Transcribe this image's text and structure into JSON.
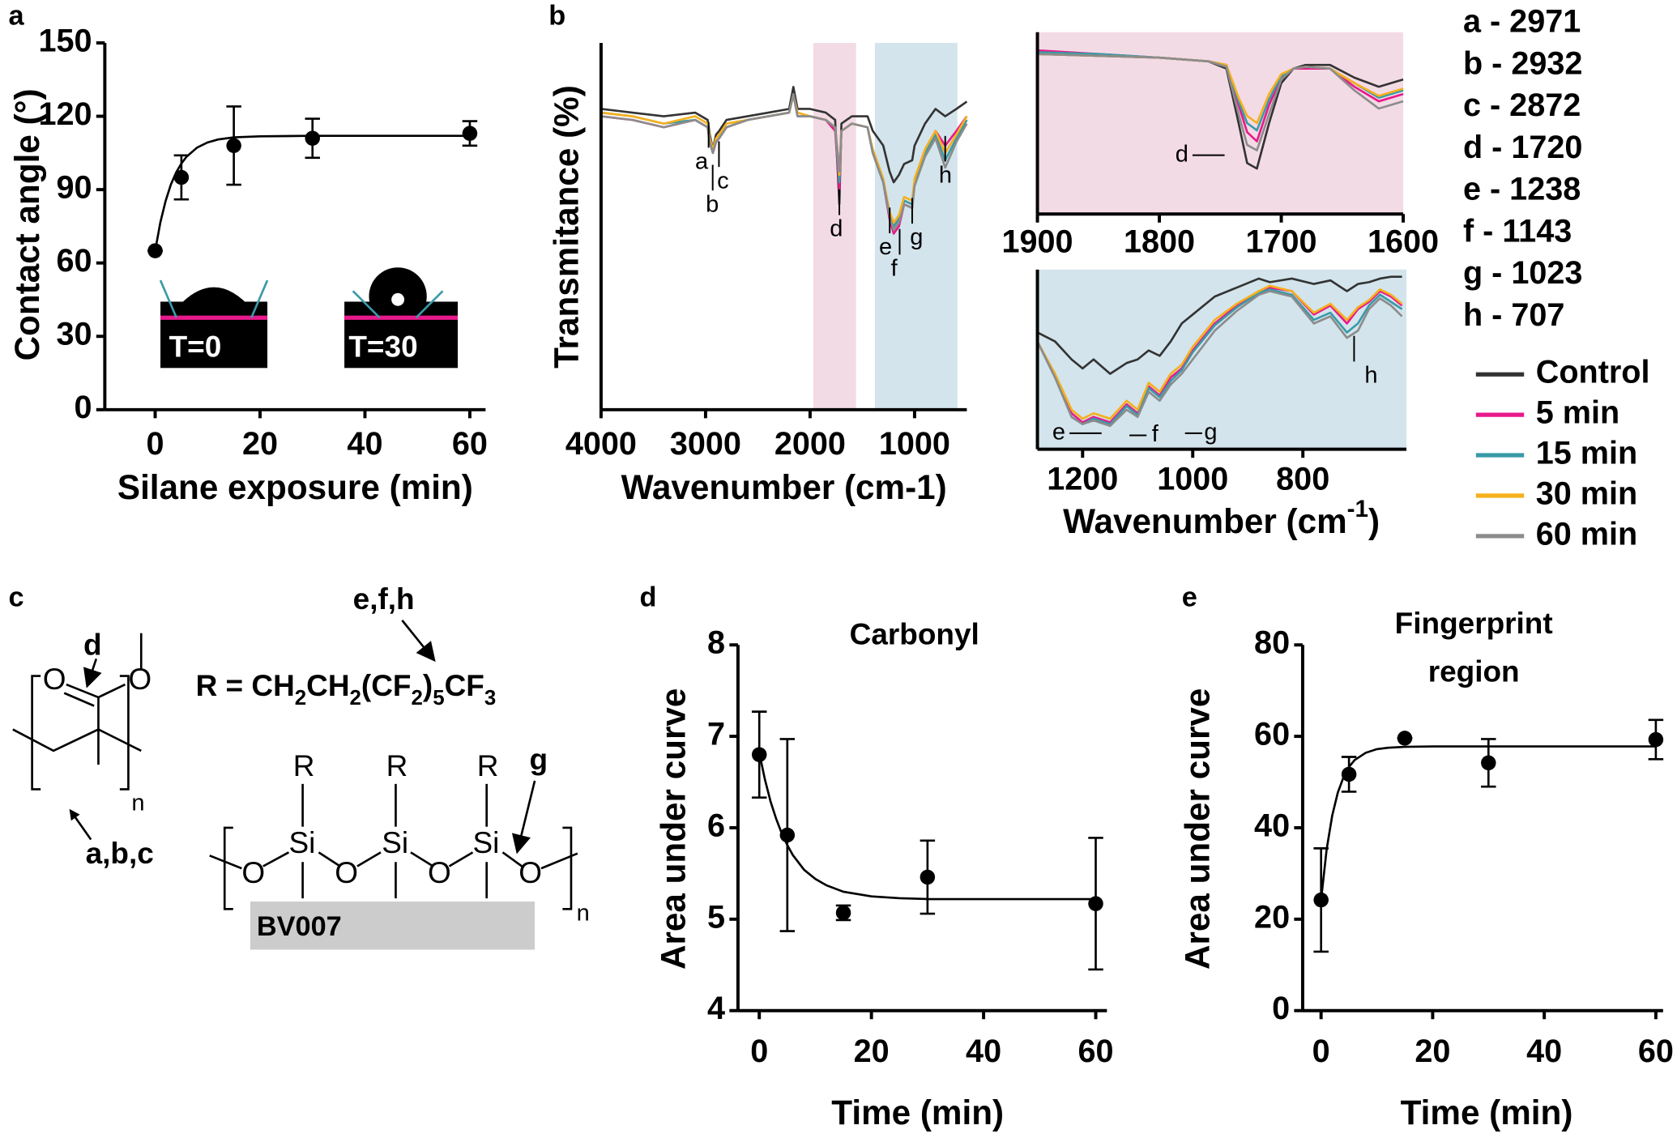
{
  "panel_labels": [
    "a",
    "b",
    "c",
    "d",
    "e"
  ],
  "chart_data": [
    {
      "type": "scatter",
      "x_label": "Silane exposure (min)",
      "y_label": "Contact angle (°)",
      "color": "#000000",
      "xlim": [
        -9.6,
        63
      ],
      "ylim": [
        0,
        150
      ],
      "xticks": [
        0,
        20,
        40,
        60
      ],
      "yticks": [
        0,
        30,
        60,
        90,
        120,
        150
      ],
      "x": [
        0,
        5,
        15,
        30,
        60
      ],
      "values": [
        65,
        95,
        108,
        111,
        113
      ],
      "errors": [
        0,
        9,
        16,
        8,
        5
      ],
      "fit": {
        "x": [
          0,
          1,
          2,
          3,
          4,
          5,
          6,
          8,
          10,
          12,
          15,
          20,
          25,
          30,
          40,
          50,
          60
        ],
        "values": [
          65,
          76.7,
          85.4,
          92.1,
          97.0,
          100.7,
          103.5,
          107.2,
          109.3,
          110.5,
          111.4,
          111.8,
          111.9,
          112,
          112,
          112,
          112
        ]
      },
      "insets": [
        "T=0",
        "T=30"
      ]
    },
    {
      "type": "line",
      "x_label": "Wavenumber (cm-1)",
      "y_label": "Transmitance (%)",
      "xlim": [
        4000,
        500
      ],
      "ylim": [
        0,
        100
      ],
      "xticks": [
        4000,
        3000,
        2000,
        1000
      ],
      "regions": [
        {
          "from": 1970,
          "to": 1560,
          "color": "#f3dbe5"
        },
        {
          "from": 1380,
          "to": 590,
          "color": "#d3e4ec"
        }
      ],
      "x": [
        4000,
        3700,
        3400,
        3100,
        2980,
        2960,
        2930,
        2900,
        2870,
        2800,
        2600,
        2400,
        2200,
        2160,
        2120,
        2000,
        1850,
        1760,
        1730,
        1720,
        1700,
        1600,
        1450,
        1400,
        1300,
        1240,
        1200,
        1150,
        1100,
        1023,
        1000,
        900,
        800,
        707,
        600,
        500
      ],
      "series": [
        {
          "name": "Control",
          "color": "#333333",
          "values": [
            82,
            81,
            80,
            81,
            79,
            75,
            71,
            75,
            76,
            79,
            80,
            81,
            82,
            88,
            82,
            82,
            81,
            79,
            62,
            56,
            78,
            80,
            80,
            76,
            72,
            65,
            62,
            64,
            67,
            68,
            72,
            78,
            82,
            80,
            82,
            84
          ]
        },
        {
          "name": "5 min",
          "color": "#e8198b",
          "values": [
            80,
            79,
            77,
            79,
            77,
            73,
            70,
            73,
            74,
            77,
            79,
            80,
            81,
            86,
            80,
            80,
            79,
            76,
            64,
            60,
            76,
            78,
            77,
            70,
            62,
            52,
            48,
            50,
            56,
            55,
            62,
            70,
            76,
            72,
            76,
            80
          ]
        },
        {
          "name": "15 min",
          "color": "#3a9aa8",
          "values": [
            81,
            80,
            78,
            79,
            77,
            73,
            70,
            73,
            74,
            77,
            79,
            80,
            81,
            86,
            80,
            80,
            79,
            77,
            66,
            62,
            76,
            78,
            77,
            70,
            62,
            53,
            50,
            52,
            57,
            56,
            62,
            70,
            75,
            68,
            74,
            79
          ]
        },
        {
          "name": "30 min",
          "color": "#f5b01c",
          "values": [
            81,
            80,
            78,
            80,
            78,
            74,
            71,
            74,
            75,
            78,
            79,
            80,
            81,
            86,
            81,
            80,
            79,
            77,
            68,
            64,
            76,
            78,
            77,
            71,
            63,
            54,
            51,
            53,
            58,
            57,
            63,
            71,
            76,
            70,
            75,
            80
          ]
        },
        {
          "name": "60 min",
          "color": "#8c8c8c",
          "values": [
            80,
            79,
            77,
            79,
            77,
            73,
            70,
            73,
            74,
            77,
            79,
            80,
            81,
            86,
            80,
            80,
            79,
            77,
            68,
            65,
            76,
            78,
            77,
            70,
            62,
            53,
            49,
            51,
            56,
            55,
            61,
            69,
            74,
            66,
            73,
            78
          ]
        }
      ],
      "annotations": [
        {
          "text": "a",
          "x": 2971
        },
        {
          "text": "b",
          "x": 2932
        },
        {
          "text": "c",
          "x": 2872
        },
        {
          "text": "d",
          "x": 1720
        },
        {
          "text": "e",
          "x": 1238
        },
        {
          "text": "f",
          "x": 1143
        },
        {
          "text": "g",
          "x": 1023
        },
        {
          "text": "h",
          "x": 707
        }
      ]
    },
    {
      "type": "line",
      "background": "#f3dbe5",
      "xlim": [
        1900,
        1600
      ],
      "ylim": [
        0,
        100
      ],
      "xticks": [
        1900,
        1800,
        1700,
        1600
      ],
      "x": [
        1900,
        1850,
        1800,
        1760,
        1745,
        1735,
        1728,
        1720,
        1710,
        1700,
        1690,
        1680,
        1660,
        1640,
        1620,
        1600
      ],
      "series": [
        {
          "color": "#333333",
          "values": [
            88,
            87,
            86,
            84,
            80,
            50,
            28,
            25,
            50,
            72,
            80,
            82,
            82,
            75,
            70,
            74
          ]
        },
        {
          "color": "#e8198b",
          "values": [
            90,
            88,
            86,
            84,
            82,
            60,
            45,
            40,
            60,
            75,
            80,
            80,
            80,
            70,
            62,
            66
          ]
        },
        {
          "color": "#3a9aa8",
          "values": [
            89,
            88,
            86,
            84,
            82,
            62,
            50,
            46,
            63,
            76,
            80,
            81,
            80,
            72,
            64,
            68
          ]
        },
        {
          "color": "#f5b01c",
          "values": [
            88,
            87,
            86,
            84,
            82,
            64,
            54,
            50,
            66,
            77,
            80,
            81,
            80,
            72,
            65,
            69
          ]
        },
        {
          "color": "#8c8c8c",
          "values": [
            88,
            87,
            86,
            84,
            81,
            55,
            38,
            35,
            55,
            74,
            80,
            81,
            80,
            68,
            58,
            62
          ]
        }
      ],
      "annotations": [
        {
          "text": "d",
          "x": 1720
        }
      ]
    },
    {
      "type": "line",
      "background": "#d3e4ec",
      "x_label": [
        "Wavenumber (cm",
        "-1",
        ")"
      ],
      "xlim": [
        1282,
        612
      ],
      "ylim": [
        0,
        100
      ],
      "xticks": [
        1200,
        1000,
        800
      ],
      "x": [
        1282,
        1250,
        1220,
        1200,
        1180,
        1150,
        1120,
        1100,
        1080,
        1060,
        1040,
        1020,
        1000,
        960,
        920,
        880,
        860,
        820,
        780,
        750,
        720,
        700,
        680,
        660,
        640,
        620
      ],
      "series": [
        {
          "color": "#333333",
          "values": [
            65,
            60,
            50,
            45,
            50,
            42,
            48,
            50,
            55,
            52,
            60,
            70,
            75,
            85,
            90,
            95,
            93,
            95,
            92,
            94,
            88,
            92,
            93,
            95,
            96,
            96
          ]
        },
        {
          "color": "#e8198b",
          "values": [
            60,
            40,
            20,
            15,
            18,
            15,
            25,
            20,
            35,
            30,
            40,
            45,
            55,
            70,
            80,
            88,
            90,
            88,
            75,
            80,
            70,
            78,
            82,
            88,
            85,
            80
          ]
        },
        {
          "color": "#3a9aa8",
          "values": [
            60,
            40,
            18,
            14,
            17,
            14,
            24,
            19,
            34,
            29,
            38,
            44,
            54,
            69,
            79,
            87,
            89,
            86,
            72,
            76,
            65,
            70,
            80,
            86,
            82,
            78
          ]
        },
        {
          "color": "#f5b01c",
          "values": [
            60,
            42,
            22,
            17,
            20,
            17,
            27,
            22,
            37,
            32,
            42,
            47,
            57,
            72,
            81,
            88,
            91,
            88,
            76,
            81,
            72,
            79,
            83,
            89,
            86,
            81
          ]
        },
        {
          "color": "#8c8c8c",
          "values": [
            60,
            40,
            18,
            14,
            16,
            13,
            22,
            18,
            32,
            27,
            36,
            42,
            50,
            66,
            77,
            86,
            88,
            85,
            70,
            74,
            62,
            66,
            78,
            84,
            80,
            74
          ]
        }
      ],
      "annotations": [
        {
          "text": "e",
          "x": 1238
        },
        {
          "text": "f",
          "x": 1143
        },
        {
          "text": "g",
          "x": 1023
        },
        {
          "text": "h",
          "x": 707
        }
      ]
    },
    {
      "type": "scatter",
      "title": [
        "Carbonyl"
      ],
      "x_label": "Time (min)",
      "y_label": "Area under curve",
      "color": "#000000",
      "xlim": [
        -3.8,
        62
      ],
      "ylim": [
        4,
        8
      ],
      "xticks": [
        0,
        20,
        40,
        60
      ],
      "yticks": [
        4,
        5,
        6,
        7,
        8
      ],
      "x": [
        0,
        5,
        15,
        30,
        60
      ],
      "values": [
        6.8,
        5.92,
        5.07,
        5.46,
        5.17
      ],
      "errors": [
        0.47,
        1.05,
        0.08,
        0.4,
        0.72
      ],
      "fit": {
        "x": [
          0,
          1,
          2,
          3,
          4,
          5,
          6,
          8,
          10,
          12,
          15,
          20,
          25,
          30,
          40,
          50,
          60
        ],
        "values": [
          6.82,
          6.53,
          6.29,
          6.1,
          5.94,
          5.81,
          5.7,
          5.54,
          5.44,
          5.37,
          5.3,
          5.25,
          5.23,
          5.22,
          5.22,
          5.22,
          5.22
        ]
      }
    },
    {
      "type": "scatter",
      "title": [
        "Fingerprint",
        "region"
      ],
      "x_label": "Time (min)",
      "y_label": "Area under curve",
      "color": "#000000",
      "xlim": [
        -3.3,
        61.3
      ],
      "ylim": [
        0,
        80
      ],
      "xticks": [
        0,
        20,
        40,
        60
      ],
      "yticks": [
        0,
        20,
        40,
        60,
        80
      ],
      "x": [
        0,
        5,
        15,
        30,
        60
      ],
      "values": [
        24.2,
        51.7,
        59.6,
        54.2,
        59.3
      ],
      "errors": [
        11.3,
        3.8,
        0,
        5.2,
        4.3
      ],
      "fit": {
        "x": [
          0,
          1,
          2,
          3,
          4,
          5,
          6,
          8,
          10,
          12,
          15,
          20,
          25,
          30,
          40,
          50,
          60
        ],
        "values": [
          24.2,
          35.3,
          42.7,
          47.7,
          51.0,
          53.3,
          54.8,
          56.4,
          57.2,
          57.5,
          57.7,
          57.8,
          57.8,
          57.8,
          57.8,
          57.8,
          57.8
        ]
      }
    }
  ],
  "peak_list": [
    "a - 2971",
    "b - 2932",
    "c - 2872",
    "d - 1720",
    "e - 1238",
    "f - 1143",
    "g - 1023",
    "h - 707"
  ],
  "diagram": {
    "d": "d",
    "efh": "e,f,h",
    "formula": [
      "R = CH",
      "2",
      "CH",
      "2",
      "(CF",
      "2",
      ")",
      "5",
      "CF",
      "3"
    ],
    "ester_o": [
      "O",
      "O"
    ],
    "n1": "n",
    "abc": "a,b,c",
    "g": "g",
    "r": [
      "R",
      "R",
      "R"
    ],
    "si": [
      "Si",
      "Si",
      "Si"
    ],
    "o": [
      "O",
      "O",
      "O",
      "O"
    ],
    "n2": "n",
    "substrate": "BV007"
  }
}
